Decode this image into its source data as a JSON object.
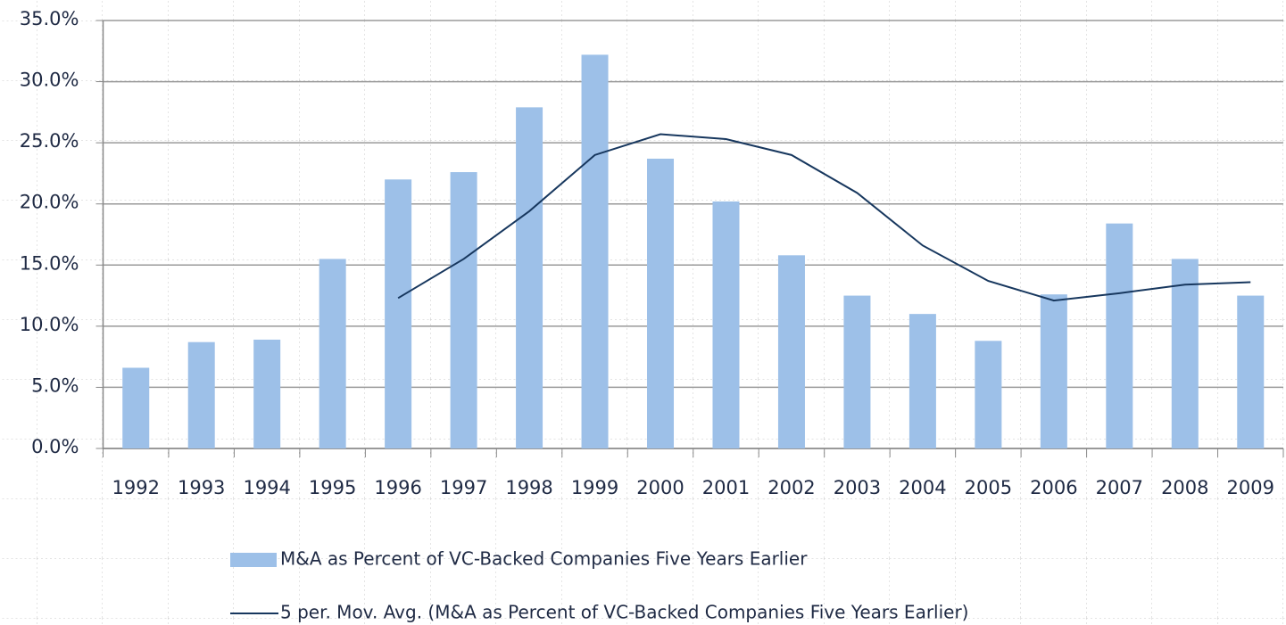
{
  "chart_data": {
    "type": "bar-line",
    "categories": [
      "1992",
      "1993",
      "1994",
      "1995",
      "1996",
      "1997",
      "1998",
      "1999",
      "2000",
      "2001",
      "2002",
      "2003",
      "2004",
      "2005",
      "2006",
      "2007",
      "2008",
      "2009"
    ],
    "series": [
      {
        "name": "M&A as Percent of VC-Backed Companies Five Years Earlier",
        "type": "bar",
        "color": "#9dc0e8",
        "values": [
          6.6,
          8.7,
          8.9,
          15.5,
          22.0,
          22.6,
          27.9,
          32.2,
          23.7,
          20.2,
          15.8,
          12.5,
          11.0,
          8.8,
          12.6,
          18.4,
          15.5,
          12.5
        ]
      },
      {
        "name": "5 per. Mov. Avg. (M&A as Percent of VC-Backed Companies Five Years Earlier)",
        "type": "line",
        "color": "#17375e",
        "values": [
          null,
          null,
          null,
          null,
          12.3,
          15.5,
          19.4,
          24.0,
          25.7,
          25.3,
          24.0,
          20.9,
          16.6,
          13.7,
          12.1,
          12.7,
          13.4,
          13.6
        ]
      }
    ],
    "ylim": [
      0,
      35
    ],
    "yticks": [
      {
        "value": 0,
        "label": "0.0%"
      },
      {
        "value": 5,
        "label": "5.0%"
      },
      {
        "value": 10,
        "label": "10.0%"
      },
      {
        "value": 15,
        "label": "15.0%"
      },
      {
        "value": 20,
        "label": "20.0%"
      },
      {
        "value": 25,
        "label": "25.0%"
      },
      {
        "value": 30,
        "label": "30.0%"
      },
      {
        "value": 35,
        "label": "35.0%"
      }
    ],
    "grid": true,
    "legend": "bottom"
  }
}
